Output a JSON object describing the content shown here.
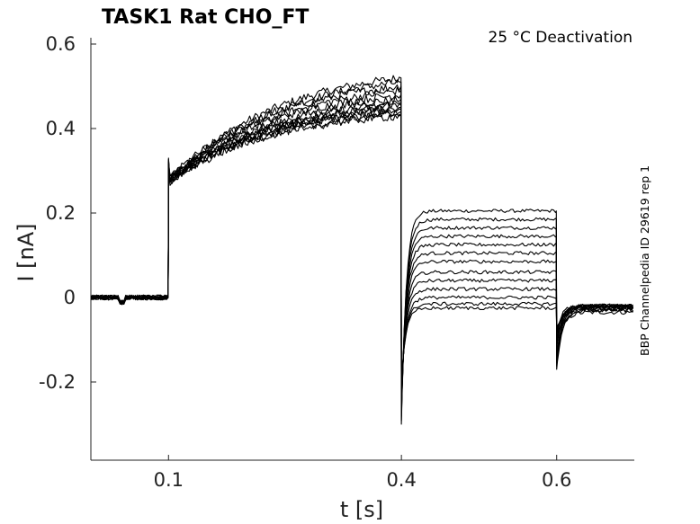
{
  "chart_data": {
    "type": "line",
    "title": "TASK1  Rat  CHO_FT",
    "annotation": "25 °C  Deactivation",
    "side_label": "BBP Channelpedia ID 29619 rep 1",
    "xlabel": "t [s]",
    "ylabel": "I [nA]",
    "xlim": [
      0.0,
      0.7
    ],
    "ylim": [
      -0.38,
      0.6
    ],
    "xticks": [
      {
        "value": 0.1,
        "label": "0.1"
      },
      {
        "value": 0.4,
        "label": "0.4"
      },
      {
        "value": 0.6,
        "label": "0.6"
      }
    ],
    "yticks": [
      {
        "value": 0.6,
        "label": "0.6"
      },
      {
        "value": 0.4,
        "label": "0.4"
      },
      {
        "value": 0.2,
        "label": "0.2"
      },
      {
        "value": 0,
        "label": "0"
      },
      {
        "value": -0.2,
        "label": "-0.2"
      }
    ],
    "grid": false,
    "series": [
      {
        "step1_start": 0.27,
        "step1_end": 0.52,
        "step2_level": 0.205,
        "step3_level": -0.035
      },
      {
        "step1_start": 0.27,
        "step1_end": 0.51,
        "step2_level": 0.185,
        "step3_level": -0.03
      },
      {
        "step1_start": 0.28,
        "step1_end": 0.5,
        "step2_level": 0.165,
        "step3_level": -0.03
      },
      {
        "step1_start": 0.27,
        "step1_end": 0.49,
        "step2_level": 0.145,
        "step3_level": -0.025
      },
      {
        "step1_start": 0.28,
        "step1_end": 0.48,
        "step2_level": 0.125,
        "step3_level": -0.025
      },
      {
        "step1_start": 0.27,
        "step1_end": 0.47,
        "step2_level": 0.105,
        "step3_level": -0.025
      },
      {
        "step1_start": 0.28,
        "step1_end": 0.46,
        "step2_level": 0.085,
        "step3_level": -0.02
      },
      {
        "step1_start": 0.27,
        "step1_end": 0.455,
        "step2_level": 0.06,
        "step3_level": -0.02
      },
      {
        "step1_start": 0.28,
        "step1_end": 0.45,
        "step2_level": 0.04,
        "step3_level": -0.02
      },
      {
        "step1_start": 0.27,
        "step1_end": 0.445,
        "step2_level": 0.02,
        "step3_level": -0.02
      },
      {
        "step1_start": 0.28,
        "step1_end": 0.44,
        "step2_level": 0.0,
        "step3_level": -0.02
      },
      {
        "step1_start": 0.27,
        "step1_end": 0.435,
        "step2_level": -0.015,
        "step3_level": -0.02
      },
      {
        "step1_start": 0.28,
        "step1_end": 0.43,
        "step2_level": -0.025,
        "step3_level": -0.02
      }
    ]
  }
}
